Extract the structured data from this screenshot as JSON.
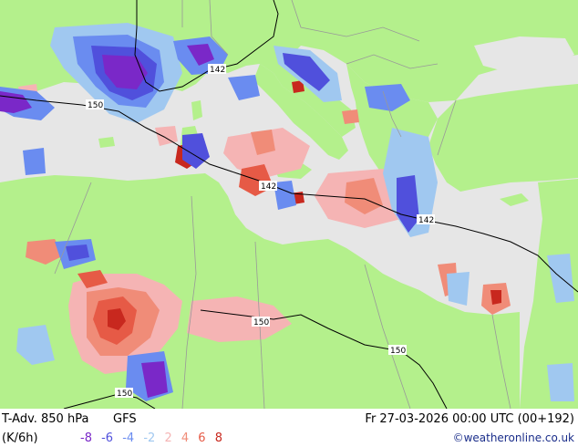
{
  "map": {
    "contour_labels": [
      {
        "id": "142-north",
        "text": "142"
      },
      {
        "id": "142-center",
        "text": "142"
      },
      {
        "id": "142-east",
        "text": "142"
      },
      {
        "id": "150-west",
        "text": "150"
      },
      {
        "id": "150-south1",
        "text": "150"
      },
      {
        "id": "150-south2",
        "text": "150"
      },
      {
        "id": "150-sw",
        "text": "150"
      }
    ],
    "colors": {
      "land": "#b4f08c",
      "sea": "#e6e6e6",
      "boundary": "#999999",
      "contour": "#000000"
    }
  },
  "footer": {
    "title": "T-Adv. 850 hPa",
    "model": "GFS",
    "unit": "(K/6h)",
    "datetime": "Fr 27-03-2026 00:00 UTC (00+192)",
    "credit": "©weatheronline.co.uk",
    "legend": [
      {
        "label": "-8",
        "color": "#7a28c8"
      },
      {
        "label": "-6",
        "color": "#5050dc"
      },
      {
        "label": "-4",
        "color": "#6a8cf0"
      },
      {
        "label": "-2",
        "color": "#a0c8f0"
      },
      {
        "label": "2",
        "color": "#f5b4b4"
      },
      {
        "label": "4",
        "color": "#f08c78"
      },
      {
        "label": "6",
        "color": "#e65a46"
      },
      {
        "label": "8",
        "color": "#c8281e"
      }
    ]
  }
}
